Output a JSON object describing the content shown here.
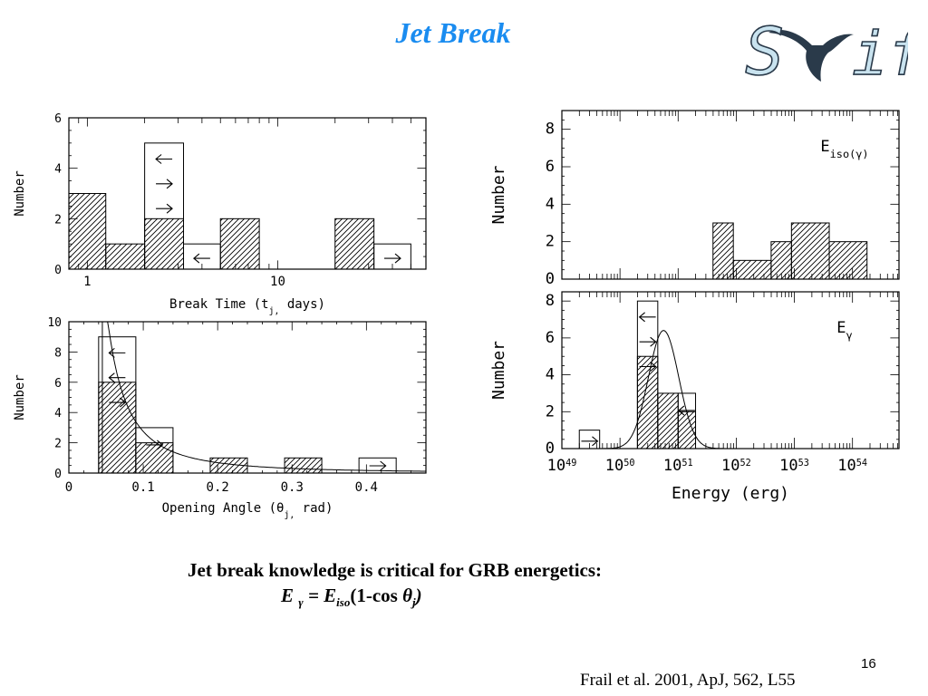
{
  "slide": {
    "title": "Jet Break",
    "logo_text": "S     ift",
    "caption_line1": "Jet break knowledge is critical for GRB energetics:",
    "formula": {
      "E": "E",
      "gamma": "γ",
      "eq": " = ",
      "Eiso": "E",
      "iso": "iso",
      "tail": "(1-cos ",
      "theta": "θ",
      "j": "j",
      "close": ")"
    },
    "page_number": "16",
    "reference": "Frail et al. 2001, ApJ, 562, L55",
    "colors": {
      "title": "#1a8cf0",
      "logo_fill": "#c9e3ef",
      "logo_stroke": "#2a3a4a"
    }
  },
  "chart_data": [
    {
      "id": "break-time",
      "type": "bar",
      "title": "",
      "xlabel": "Break Time (t_j, days)",
      "ylabel": "Number",
      "xscale": "log",
      "xlim": [
        0.8,
        60
      ],
      "ylim": [
        0,
        6
      ],
      "xticks": [
        {
          "v": 1,
          "label": "1"
        },
        {
          "v": 10,
          "label": "10"
        }
      ],
      "yticks": [
        0,
        2,
        4,
        6
      ],
      "hatched": [
        {
          "x0": 0.8,
          "x1": 1.25,
          "count": 3
        },
        {
          "x0": 1.25,
          "x1": 2.0,
          "count": 1
        },
        {
          "x0": 2.0,
          "x1": 3.2,
          "count": 2
        },
        {
          "x0": 5.0,
          "x1": 8.0,
          "count": 2
        },
        {
          "x0": 20.0,
          "x1": 32.0,
          "count": 2
        }
      ],
      "limits": [
        {
          "x0": 2.0,
          "x1": 3.2,
          "count": 5,
          "arrows": [
            "left",
            "right",
            "right"
          ]
        },
        {
          "x0": 3.2,
          "x1": 5.0,
          "count": 1,
          "arrows": [
            "left"
          ]
        },
        {
          "x0": 32.0,
          "x1": 50.0,
          "count": 1,
          "arrows": [
            "right"
          ]
        }
      ]
    },
    {
      "id": "opening-angle",
      "type": "bar",
      "title": "",
      "xlabel": "Opening Angle (θ_j, rad)",
      "ylabel": "Number",
      "xscale": "linear",
      "xlim": [
        0,
        0.48
      ],
      "ylim": [
        0,
        10
      ],
      "xticks": [
        {
          "v": 0,
          "label": "0"
        },
        {
          "v": 0.1,
          "label": "0.1"
        },
        {
          "v": 0.2,
          "label": "0.2"
        },
        {
          "v": 0.3,
          "label": "0.3"
        },
        {
          "v": 0.4,
          "label": "0.4"
        }
      ],
      "yticks": [
        0,
        2,
        4,
        6,
        8,
        10
      ],
      "hatched": [
        {
          "x0": 0.04,
          "x1": 0.09,
          "count": 6
        },
        {
          "x0": 0.09,
          "x1": 0.14,
          "count": 2
        },
        {
          "x0": 0.19,
          "x1": 0.24,
          "count": 1
        },
        {
          "x0": 0.29,
          "x1": 0.34,
          "count": 1
        }
      ],
      "limits": [
        {
          "x0": 0.04,
          "x1": 0.09,
          "count": 9,
          "arrows": [
            "left",
            "left",
            "right"
          ]
        },
        {
          "x0": 0.09,
          "x1": 0.14,
          "count": 3,
          "arrows": [
            "right"
          ]
        },
        {
          "x0": 0.39,
          "x1": 0.44,
          "count": 1,
          "arrows": [
            "right"
          ]
        }
      ],
      "curve": {
        "form": "A/x^2",
        "A": 0.0275,
        "x_range": [
          0.052,
          0.48
        ]
      },
      "vline": 0.045
    },
    {
      "id": "eiso",
      "type": "bar",
      "title": "",
      "label": "E_iso(γ)",
      "xlabel": "",
      "ylabel": "Number",
      "xscale": "log",
      "xlim": [
        49,
        54.8
      ],
      "ylim": [
        0,
        9
      ],
      "yticks": [
        0,
        2,
        4,
        6,
        8
      ],
      "hatched": [
        {
          "x0": 51.6,
          "x1": 51.95,
          "count": 3
        },
        {
          "x0": 51.95,
          "x1": 52.6,
          "count": 1
        },
        {
          "x0": 52.6,
          "x1": 52.95,
          "count": 2
        },
        {
          "x0": 52.95,
          "x1": 53.6,
          "count": 3
        },
        {
          "x0": 53.6,
          "x1": 54.25,
          "count": 2
        }
      ],
      "limits": []
    },
    {
      "id": "egamma",
      "type": "bar",
      "title": "",
      "label": "E_γ",
      "xlabel": "Energy (erg)",
      "ylabel": "Number",
      "xscale": "log",
      "xlim": [
        49,
        54.8
      ],
      "ylim": [
        0,
        8.5
      ],
      "xticks": [
        {
          "v": 49,
          "label": "10",
          "exp": "49"
        },
        {
          "v": 50,
          "label": "10",
          "exp": "50"
        },
        {
          "v": 51,
          "label": "10",
          "exp": "51"
        },
        {
          "v": 52,
          "label": "10",
          "exp": "52"
        },
        {
          "v": 53,
          "label": "10",
          "exp": "53"
        },
        {
          "v": 54,
          "label": "10",
          "exp": "54"
        }
      ],
      "yticks": [
        0,
        2,
        4,
        6,
        8
      ],
      "hatched": [
        {
          "x0": 50.3,
          "x1": 50.65,
          "count": 5
        },
        {
          "x0": 50.65,
          "x1": 51.0,
          "count": 3
        },
        {
          "x0": 51.0,
          "x1": 51.3,
          "count": 2
        }
      ],
      "limits": [
        {
          "x0": 49.3,
          "x1": 49.65,
          "count": 1,
          "arrows": [
            "right"
          ]
        },
        {
          "x0": 50.3,
          "x1": 50.65,
          "count": 8,
          "arrows": [
            "left",
            "right",
            "right"
          ]
        },
        {
          "x0": 51.0,
          "x1": 51.3,
          "count": 3,
          "arrows": [
            "left"
          ]
        }
      ],
      "curve": {
        "form": "gaussian",
        "amp": 6.4,
        "mu": 50.75,
        "sigma": 0.26,
        "x_range": [
          49.5,
          52.0
        ]
      }
    }
  ]
}
